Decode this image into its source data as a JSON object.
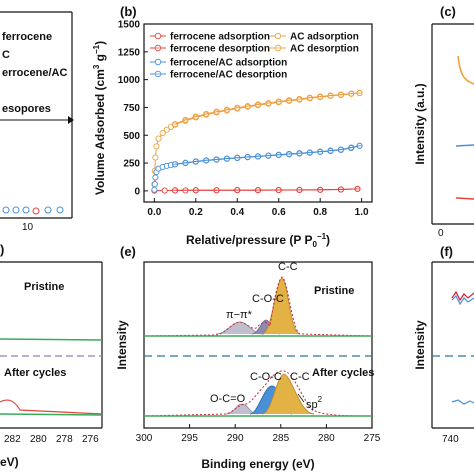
{
  "colors": {
    "ferrocene": "#e0443e",
    "ac": "#f0a040",
    "ferrocene_ac": "#4a90d9",
    "dashed": "#2a7a8a",
    "green": "#3aaa5a",
    "yellow": "#e3b245",
    "gray": "#8a8aa0",
    "envelope": "#d4203a"
  },
  "panel_a": {
    "legend": [
      "ferrocene",
      "C",
      "errocene/AC"
    ],
    "annotation": "esopores",
    "tick_x": "10"
  },
  "panel_b": {
    "label": "(b)",
    "xlabel": "Relative/pressure (P P",
    "xlabel_sub": "0",
    "xlabel_sup": "−1",
    "xlabel_end": ")",
    "ylabel": "Volume Adsorbed (cm",
    "ylabel_sup": "3",
    "ylabel_mid": " g",
    "ylabel_sup2": "−1",
    "ylabel_end": ")",
    "legend": [
      {
        "name": "ferrocene adsorption",
        "color_key": "ferrocene",
        "marker": "circle"
      },
      {
        "name": "ferrocene desorption",
        "color_key": "ferrocene",
        "marker": "circle-cross"
      },
      {
        "name": "AC adsorption",
        "color_key": "ac",
        "marker": "circle"
      },
      {
        "name": "AC desorption",
        "color_key": "ac",
        "marker": "circle-cross"
      },
      {
        "name": "ferrocene/AC  adsorption",
        "color_key": "ferrocene_ac",
        "marker": "circle"
      },
      {
        "name": "ferrocene/AC  desorption",
        "color_key": "ferrocene_ac",
        "marker": "circle-cross"
      }
    ]
  },
  "panel_c": {
    "label": "(c)",
    "ylabel": "Intensity (a.u.)",
    "tick_x": "0"
  },
  "panel_d": {
    "label": ")",
    "text_top": "Pristine",
    "text_bottom": "After cycles",
    "xticks": [
      "282",
      "280",
      "278",
      "276"
    ],
    "xlabel": "eV)"
  },
  "panel_e": {
    "label": "(e)",
    "ylabel": "Intensity",
    "xlabel": "Binding energy (eV)",
    "xticks": [
      "300",
      "295",
      "290",
      "285",
      "280",
      "275"
    ],
    "text_top": "Pristine",
    "text_bottom": "After cycles",
    "annotations_top": [
      "π−π*",
      "C-O-C",
      "C-C"
    ],
    "annotations_bottom": [
      "O-C=O",
      "C-O-C",
      "C-C"
    ],
    "sp2_main": "sp",
    "sp2_sup": "2"
  },
  "panel_f": {
    "label": "(f)",
    "ylabel": "Intensity",
    "xticks": [
      "740"
    ]
  },
  "chart_data": [
    {
      "panel": "b",
      "type": "scatter",
      "xlabel": "Relative/pressure (P P0−1)",
      "ylabel": "Volume Adsorbed (cm3 g−1)",
      "xlim": [
        -0.05,
        1.05
      ],
      "ylim": [
        -100,
        1500
      ],
      "xticks": [
        0.0,
        0.2,
        0.4,
        0.6,
        0.8,
        1.0
      ],
      "xtick_labels": [
        "0.0",
        "0.2",
        "0.4",
        "0.6",
        "0.8",
        "1.0"
      ],
      "yticks": [
        0,
        250,
        500,
        750,
        1000,
        1250,
        1500
      ],
      "ytick_labels": [
        "0",
        "250",
        "500",
        "750",
        "1000",
        "1250",
        "1500"
      ],
      "legend_position": "top",
      "series": [
        {
          "name": "ferrocene adsorption",
          "color_key": "ferrocene",
          "x": [
            0.0,
            0.05,
            0.1,
            0.15,
            0.2,
            0.3,
            0.4,
            0.5,
            0.6,
            0.7,
            0.8,
            0.9,
            0.98
          ],
          "y": [
            2,
            3,
            4,
            4,
            5,
            5,
            6,
            6,
            7,
            8,
            9,
            12,
            18
          ]
        },
        {
          "name": "ferrocene desorption",
          "color_key": "ferrocene",
          "x": [
            0.98,
            0.9,
            0.8,
            0.7,
            0.6,
            0.5,
            0.4,
            0.3,
            0.2,
            0.1
          ],
          "y": [
            18,
            13,
            10,
            9,
            8,
            7,
            7,
            6,
            6,
            5
          ]
        },
        {
          "name": "AC adsorption",
          "color_key": "ac",
          "x": [
            0.0,
            0.002,
            0.005,
            0.01,
            0.02,
            0.04,
            0.06,
            0.08,
            0.1,
            0.15,
            0.2,
            0.25,
            0.3,
            0.35,
            0.4,
            0.45,
            0.5,
            0.55,
            0.6,
            0.65,
            0.7,
            0.75,
            0.8,
            0.85,
            0.9,
            0.95,
            0.99
          ],
          "y": [
            60,
            180,
            300,
            400,
            470,
            520,
            550,
            575,
            595,
            630,
            660,
            685,
            705,
            722,
            740,
            755,
            770,
            783,
            797,
            808,
            820,
            832,
            843,
            853,
            862,
            872,
            880
          ]
        },
        {
          "name": "AC desorption",
          "color_key": "ac",
          "x": [
            0.99,
            0.95,
            0.9,
            0.85,
            0.8,
            0.75,
            0.7,
            0.65,
            0.6,
            0.55,
            0.5,
            0.45,
            0.4,
            0.35,
            0.3,
            0.25,
            0.2,
            0.15,
            0.1
          ],
          "y": [
            880,
            875,
            866,
            857,
            848,
            838,
            826,
            815,
            803,
            790,
            777,
            762,
            747,
            730,
            712,
            692,
            668,
            638,
            600
          ]
        },
        {
          "name": "ferrocene/AC  adsorption",
          "color_key": "ferrocene_ac",
          "x": [
            0.0,
            0.002,
            0.005,
            0.01,
            0.02,
            0.04,
            0.06,
            0.08,
            0.1,
            0.15,
            0.2,
            0.25,
            0.3,
            0.35,
            0.4,
            0.45,
            0.5,
            0.55,
            0.6,
            0.65,
            0.7,
            0.75,
            0.8,
            0.85,
            0.9,
            0.95,
            0.99
          ],
          "y": [
            10,
            60,
            120,
            170,
            200,
            215,
            225,
            232,
            238,
            250,
            262,
            272,
            280,
            288,
            295,
            302,
            308,
            315,
            322,
            328,
            335,
            342,
            350,
            358,
            368,
            385,
            405
          ]
        },
        {
          "name": "ferrocene/AC  desorption",
          "color_key": "ferrocene_ac",
          "x": [
            0.99,
            0.95,
            0.9,
            0.85,
            0.8,
            0.75,
            0.7,
            0.65,
            0.6,
            0.55,
            0.5,
            0.45,
            0.4,
            0.35,
            0.3,
            0.25,
            0.2,
            0.15,
            0.1
          ],
          "y": [
            405,
            390,
            372,
            362,
            353,
            346,
            339,
            332,
            325,
            318,
            311,
            305,
            298,
            291,
            283,
            275,
            265,
            253,
            240
          ]
        }
      ]
    },
    {
      "panel": "e",
      "type": "line",
      "title": "",
      "xlabel": "Binding energy (eV)",
      "ylabel": "Intensity",
      "xlim": [
        300,
        275
      ],
      "note": "Pristine (top) and After cycles (bottom) C 1s spectra"
    }
  ]
}
